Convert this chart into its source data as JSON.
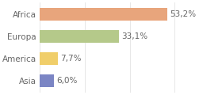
{
  "categories": [
    "Africa",
    "Europa",
    "America",
    "Asia"
  ],
  "values": [
    53.2,
    33.1,
    7.7,
    6.0
  ],
  "labels": [
    "53,2%",
    "33,1%",
    "7,7%",
    "6,0%"
  ],
  "bar_colors": [
    "#e8a57c",
    "#b5c98a",
    "#f0ce6a",
    "#7b85c4"
  ],
  "background_color": "#ffffff",
  "xlim": [
    0,
    75
  ],
  "bar_height": 0.55,
  "label_fontsize": 7.5,
  "category_fontsize": 7.5,
  "text_color": "#666666",
  "grid_color": "#dddddd"
}
